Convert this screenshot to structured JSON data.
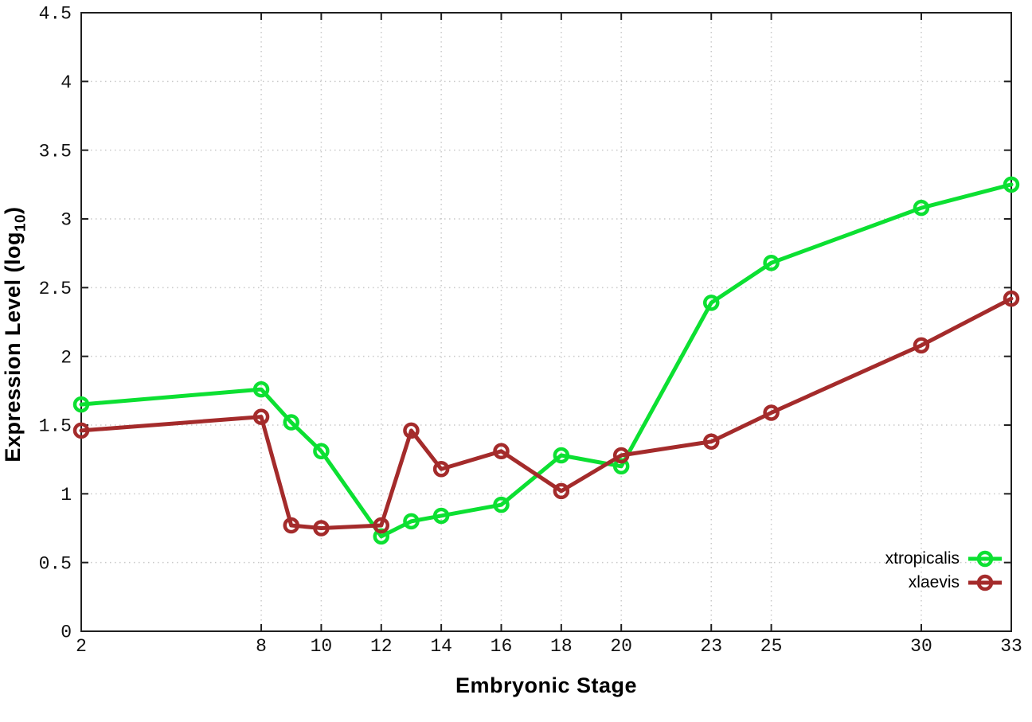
{
  "chart_data": {
    "type": "line",
    "title": "",
    "xlabel": "Embryonic Stage",
    "ylabel": "Expression Level (log10)",
    "ylabel_parts": {
      "prefix": "Expression Level (log",
      "sub": "10",
      "suffix": ")"
    },
    "xlim": [
      2,
      33
    ],
    "ylim": [
      0,
      4.5
    ],
    "x_ticks": [
      2,
      8,
      10,
      12,
      14,
      16,
      18,
      20,
      23,
      25,
      30,
      33
    ],
    "y_ticks": [
      0,
      0.5,
      1,
      1.5,
      2,
      2.5,
      3,
      3.5,
      4,
      4.5
    ],
    "grid": true,
    "grid_style": "dotted",
    "legend_position": "inside-bottom-right",
    "colors": {
      "border": "#1f1f1f",
      "grid": "#c9c9c9",
      "tick_text": "#111111"
    },
    "series": [
      {
        "name": "xtropicalis",
        "color": "#0ce032",
        "x": [
          2,
          8,
          9,
          10,
          12,
          13,
          14,
          16,
          18,
          20,
          23,
          25,
          30,
          33
        ],
        "values": [
          1.65,
          1.76,
          1.52,
          1.31,
          0.69,
          0.8,
          0.84,
          0.92,
          1.28,
          1.2,
          2.39,
          2.68,
          3.08,
          3.25
        ]
      },
      {
        "name": "xlaevis",
        "color": "#a42b2b",
        "x": [
          2,
          8,
          9,
          10,
          12,
          13,
          14,
          16,
          18,
          20,
          23,
          25,
          30,
          33
        ],
        "values": [
          1.46,
          1.56,
          0.77,
          0.75,
          0.77,
          1.46,
          1.18,
          1.31,
          1.02,
          1.28,
          1.38,
          1.59,
          2.08,
          2.42
        ]
      }
    ]
  }
}
